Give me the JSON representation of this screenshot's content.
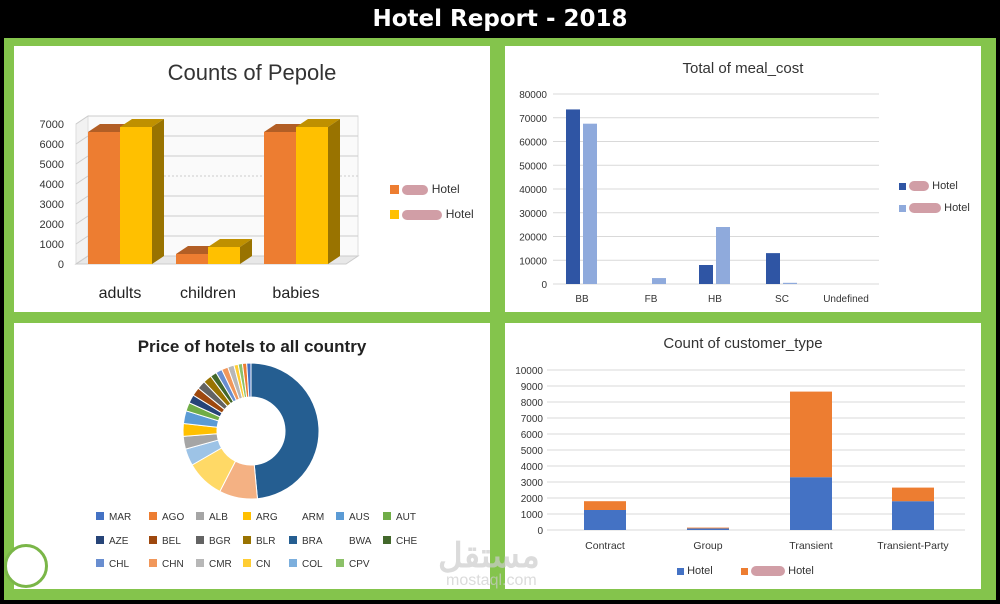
{
  "header": {
    "title": "Hotel Report - 2018"
  },
  "colors": {
    "frame": "#84c44c",
    "orange": "#ed7d31",
    "gold": "#ffc000",
    "dark_blue": "#2f55a4",
    "light_blue": "#8faadc",
    "blue": "#4472c4"
  },
  "panel1": {
    "title": "Counts of Pepole",
    "legend": [
      "Hotel",
      "Hotel"
    ]
  },
  "panel2": {
    "title": "Total of meal_cost",
    "legend": [
      "Hotel",
      "Hotel"
    ]
  },
  "panel3": {
    "title": "Price of hotels to all country",
    "legend": [
      "MAR",
      "AGO",
      "ALB",
      "ARG",
      "ARM",
      "AUS",
      "AUT",
      "AZE",
      "BEL",
      "BGR",
      "BLR",
      "BRA",
      "BWA",
      "CHE",
      "CHL",
      "CHN",
      "CMR",
      "CN",
      "COL",
      "CPV"
    ]
  },
  "panel4": {
    "title": "Count of customer_type",
    "legend": [
      "Hotel",
      "Hotel"
    ]
  },
  "watermark": {
    "text": "مستقل",
    "sub": "mostaql.com"
  },
  "chart_data": [
    {
      "type": "bar",
      "title": "Counts of Pepole",
      "categories": [
        "adults",
        "children",
        "babies"
      ],
      "series": [
        {
          "name": "Hotel",
          "values": [
            6600,
            500,
            6600
          ],
          "color": "#ed7d31"
        },
        {
          "name": "Hotel",
          "values": [
            6850,
            850,
            6850
          ],
          "color": "#ffc000"
        }
      ],
      "yticks": [
        "0",
        "1000",
        "2000",
        "3000",
        "4000",
        "5000",
        "6000",
        "7000"
      ],
      "ylim": [
        0,
        7000
      ]
    },
    {
      "type": "bar",
      "title": "Total of meal_cost",
      "categories": [
        "BB",
        "FB",
        "HB",
        "SC",
        "Undefined"
      ],
      "series": [
        {
          "name": "Hotel",
          "values": [
            73500,
            0,
            8000,
            13000,
            0
          ],
          "color": "#2f55a4"
        },
        {
          "name": "Hotel",
          "values": [
            67500,
            2500,
            24000,
            500,
            0
          ],
          "color": "#8faadc"
        }
      ],
      "yticks": [
        "0",
        "10000",
        "20000",
        "30000",
        "40000",
        "50000",
        "60000",
        "70000",
        "80000"
      ],
      "ylim": [
        0,
        80000
      ]
    },
    {
      "type": "pie",
      "title": "Price of hotels to all country",
      "labels": [
        "MAR",
        "AGO",
        "ALB",
        "ARG",
        "ARM",
        "AUS",
        "AUT",
        "AZE",
        "BEL",
        "BGR",
        "BLR",
        "BRA",
        "BWA",
        "CHE",
        "CHL",
        "CHN",
        "CMR",
        "CN",
        "COL",
        "CPV"
      ],
      "values": [
        48,
        9,
        9,
        4,
        3,
        3,
        3,
        2,
        2,
        2,
        2,
        2,
        1.5,
        1.5,
        1.5,
        1.5,
        1,
        1,
        1,
        1
      ]
    },
    {
      "type": "bar",
      "stacked": true,
      "title": "Count of customer_type",
      "categories": [
        "Contract",
        "Group",
        "Transient",
        "Transient-Party"
      ],
      "series": [
        {
          "name": "Hotel",
          "values": [
            1250,
            100,
            3300,
            1800
          ],
          "color": "#4472c4"
        },
        {
          "name": "Hotel",
          "values": [
            550,
            50,
            5350,
            850
          ],
          "color": "#ed7d31"
        }
      ],
      "yticks": [
        "0",
        "1000",
        "2000",
        "3000",
        "4000",
        "5000",
        "6000",
        "7000",
        "8000",
        "9000",
        "10000"
      ],
      "ylim": [
        0,
        10000
      ]
    }
  ]
}
